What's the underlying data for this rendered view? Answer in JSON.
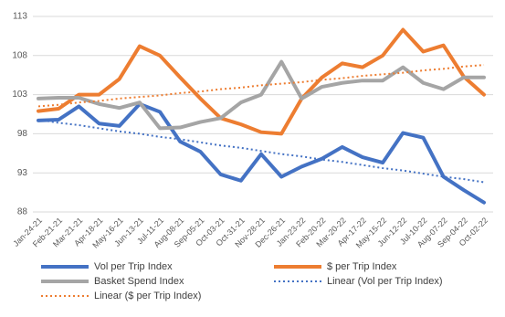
{
  "chart_data": {
    "type": "line",
    "categories": [
      "Jan-24-21",
      "Feb-21-21",
      "Mar-21-21",
      "Apr-18-21",
      "May-16-21",
      "Jun-13-21",
      "Jul-11-21",
      "Aug-08-21",
      "Sep-05-21",
      "Oct-03-21",
      "Oct-31-21",
      "Nov-28-21",
      "Dec-26-21",
      "Jan-23-22",
      "Feb-20-22",
      "Mar-20-22",
      "Apr-17-22",
      "May-15-22",
      "Jun-12-22",
      "Jul-10-22",
      "Aug-07-22",
      "Sep-04-22",
      "Oct-02-22"
    ],
    "series": [
      {
        "name": "Vol per Trip Index",
        "color": "#4472c4",
        "style": "solid",
        "values": [
          99.7,
          99.8,
          101.5,
          99.3,
          99,
          101.8,
          100.8,
          97,
          95.7,
          92.8,
          92,
          95.4,
          92.5,
          93.8,
          94.8,
          96.3,
          95,
          94.3,
          98.1,
          97.5,
          92.5,
          90.8,
          89.2
        ]
      },
      {
        "name": "$ per Trip Index",
        "color": "#ed7d31",
        "style": "solid",
        "values": [
          100.9,
          101.2,
          103,
          103,
          105,
          109.2,
          108,
          105.2,
          102.5,
          100,
          99.2,
          98.2,
          98,
          102.5,
          105.2,
          107,
          106.5,
          108,
          111.3,
          108.5,
          109.3,
          105.3,
          103
        ]
      },
      {
        "name": "Basket Spend Index",
        "color": "#a5a5a5",
        "style": "solid",
        "values": [
          102.5,
          102.6,
          102.6,
          101.8,
          101.3,
          102,
          98.7,
          98.8,
          99.5,
          100,
          102,
          103,
          107.2,
          102.5,
          104,
          104.5,
          104.8,
          104.8,
          106.5,
          104.5,
          103.7,
          105.2,
          105.2
        ]
      },
      {
        "name": "Linear (Vol per Trip Index)",
        "color": "#4472c4",
        "style": "dotted",
        "values": [
          99.8,
          99.4,
          99.1,
          98.7,
          98.3,
          98.0,
          97.6,
          97.3,
          96.9,
          96.5,
          96.2,
          95.8,
          95.4,
          95.1,
          94.7,
          94.4,
          94.0,
          93.6,
          93.3,
          92.9,
          92.5,
          92.2,
          91.8
        ]
      },
      {
        "name": "Linear ($ per Trip Index)",
        "color": "#ed7d31",
        "style": "dotted",
        "values": [
          101.5,
          101.7,
          102.0,
          102.2,
          102.5,
          102.7,
          102.9,
          103.2,
          103.4,
          103.7,
          103.9,
          104.2,
          104.4,
          104.6,
          104.9,
          105.1,
          105.4,
          105.6,
          105.8,
          106.1,
          106.3,
          106.6,
          106.8
        ]
      }
    ],
    "ylim": [
      88,
      113
    ],
    "yticks": [
      88,
      93,
      98,
      103,
      108,
      113
    ],
    "grid": true
  }
}
